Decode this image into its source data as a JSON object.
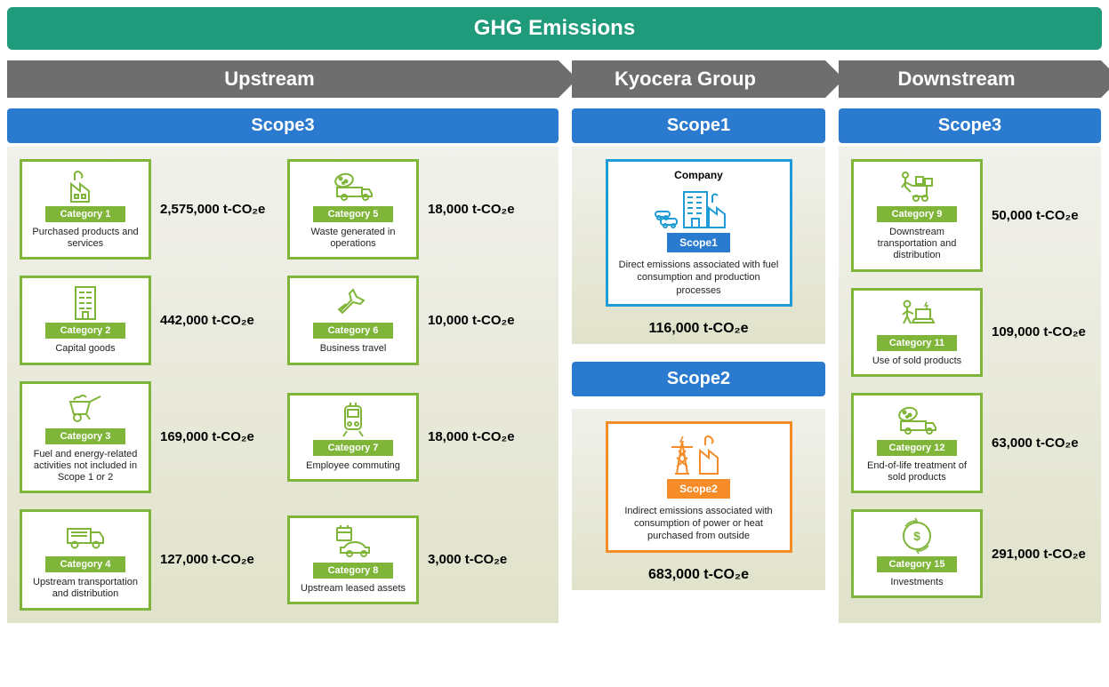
{
  "title": "GHG Emissions",
  "arrows": {
    "upstream": "Upstream",
    "middle": "Kyocera Group",
    "downstream": "Downstream"
  },
  "scope_headers": {
    "upstream": "Scope3",
    "middle_top": "Scope1",
    "middle_bottom": "Scope2",
    "downstream": "Scope3"
  },
  "colors": {
    "title_bg": "#1f9b7c",
    "arrow_bg": "#6e6e6e",
    "scope_bg": "#2a7bd0",
    "green": "#7fb539",
    "blue": "#1f9bd6",
    "orange": "#f58c28",
    "panel_top": "#f1f1ec",
    "panel_bottom": "#e0e2ca"
  },
  "unit": "t-CO₂e",
  "upstream": [
    {
      "cat": "Category 1",
      "desc": "Purchased products and services",
      "value": "2,575,000 t-CO₂e",
      "icon": "factory"
    },
    {
      "cat": "Category 5",
      "desc": "Waste generated in operations",
      "value": "18,000 t-CO₂e",
      "icon": "waste-truck"
    },
    {
      "cat": "Category 2",
      "desc": "Capital goods",
      "value": "442,000 t-CO₂e",
      "icon": "building"
    },
    {
      "cat": "Category 6",
      "desc": "Business travel",
      "value": "10,000 t-CO₂e",
      "icon": "plane"
    },
    {
      "cat": "Category 3",
      "desc": "Fuel and energy-related activities not included in Scope 1 or 2",
      "value": "169,000 t-CO₂e",
      "icon": "wheelbarrow"
    },
    {
      "cat": "Category 7",
      "desc": "Employee commuting",
      "value": "18,000 t-CO₂e",
      "icon": "train"
    },
    {
      "cat": "Category 4",
      "desc": "Upstream transportation and distribution",
      "value": "127,000 t-CO₂e",
      "icon": "truck"
    },
    {
      "cat": "Category 8",
      "desc": "Upstream leased assets",
      "value": "3,000 t-CO₂e",
      "icon": "car-calendar"
    }
  ],
  "downstream": [
    {
      "cat": "Category 9",
      "desc": "Downstream transportation and distribution",
      "value": "50,000 t-CO₂e",
      "icon": "handtruck"
    },
    {
      "cat": "Category 11",
      "desc": "Use of sold products",
      "value": "109,000 t-CO₂e",
      "icon": "laptop-user"
    },
    {
      "cat": "Category 12",
      "desc": "End-of-life treatment of sold products",
      "value": "63,000 t-CO₂e",
      "icon": "waste-truck"
    },
    {
      "cat": "Category 15",
      "desc": "Investments",
      "value": "291,000 t-CO₂e",
      "icon": "money-cycle"
    }
  ],
  "scope1": {
    "company_label": "Company",
    "badge": "Scope1",
    "desc": "Direct emissions associated with fuel consumption and production processes",
    "value": "116,000 t-CO₂e",
    "border": "#1f9bd6"
  },
  "scope2": {
    "badge": "Scope2",
    "desc": "Indirect emissions associated with consumption of power or heat purchased from outside",
    "value": "683,000 t-CO₂e",
    "border": "#f58c28"
  },
  "layout": {
    "widths": {
      "upstream": 620,
      "middle": 285,
      "downstream": 295
    },
    "category_box_width": 148,
    "scope_box_width": 210,
    "font_sizes": {
      "title": 24,
      "arrow": 22,
      "scope_header": 20,
      "value": 15,
      "badge": 11,
      "desc": 11
    }
  }
}
